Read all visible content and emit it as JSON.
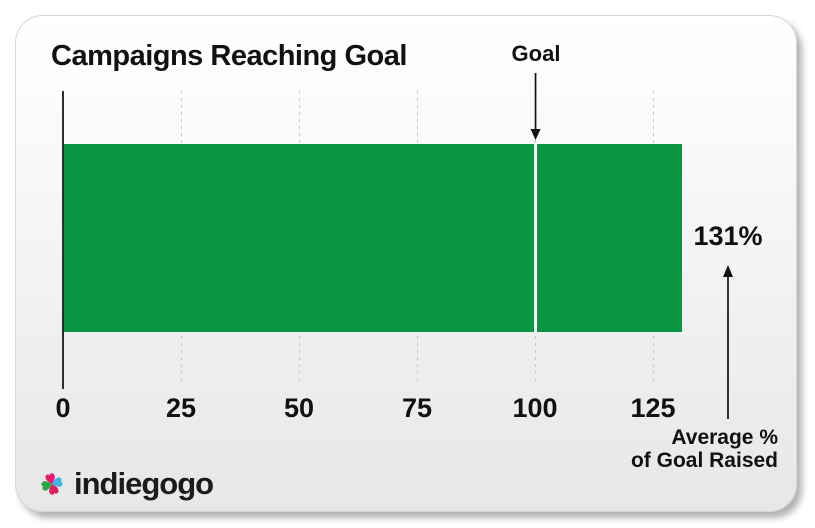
{
  "chart_data": {
    "type": "bar",
    "orientation": "horizontal",
    "title": "Campaigns Reaching Goal",
    "categories": [
      "Average % of Goal Raised"
    ],
    "values": [
      131
    ],
    "value_label": "131%",
    "xlabel": "",
    "ylabel": "",
    "xlim": [
      0,
      131
    ],
    "x_ticks": [
      "0",
      "25",
      "50",
      "75",
      "100",
      "125"
    ],
    "x_tick_values": [
      0,
      25,
      50,
      75,
      100,
      125
    ],
    "grid": "dashed-vertical-gridlines",
    "legend": "none",
    "bar_color": "#0a9542",
    "goal": {
      "label": "Goal",
      "value": 100,
      "line_color": "#ffffff"
    },
    "annotation": {
      "line1": "Average %",
      "line2": "of Goal Raised"
    }
  },
  "branding": {
    "logo_text": "indiegogo",
    "logo_petal_colors": {
      "top": "#EC1A70",
      "right": "#3FB5E5",
      "bottom": "#DB205E",
      "left": "#27A74B"
    }
  },
  "colors": {
    "axis": "#2e2e2e",
    "gridline": "#c8c8c8",
    "text": "#111111",
    "card_background_top": "#ffffff",
    "card_background_bottom": "#e7e7e7"
  }
}
